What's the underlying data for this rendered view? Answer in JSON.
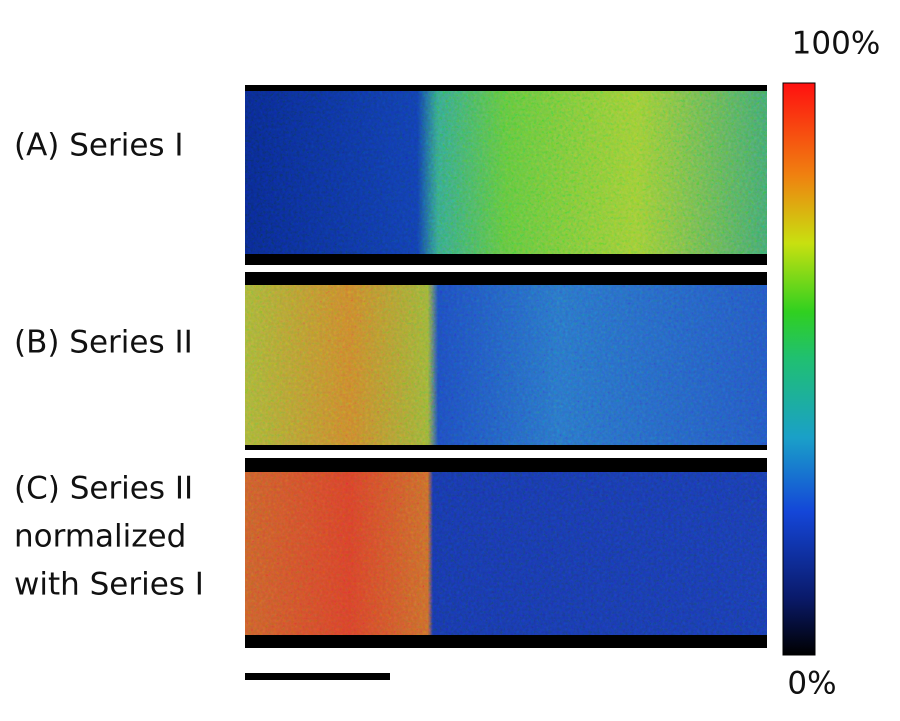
{
  "panels": [
    {
      "label": [
        "(A) Series I"
      ]
    },
    {
      "label": [
        "(B) Series II"
      ]
    },
    {
      "label": [
        "(C) Series II",
        "normalized",
        "with Series I"
      ]
    }
  ],
  "colorbar": {
    "max": "100%",
    "min": "0%"
  }
}
